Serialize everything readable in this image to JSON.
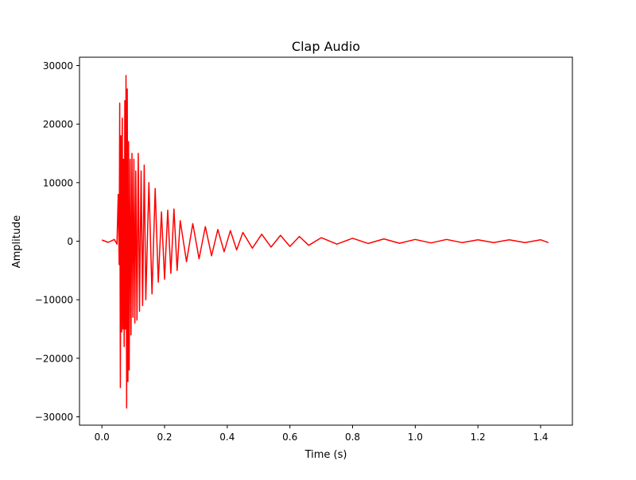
{
  "chart_data": {
    "type": "line",
    "title": "Clap Audio",
    "xlabel": "Time (s)",
    "ylabel": "Amplitude",
    "xlim": [
      -0.0715,
      1.5015
    ],
    "ylim": [
      -31427,
      31427
    ],
    "xticks": [
      {
        "value": 0.0,
        "label": "0.0"
      },
      {
        "value": 0.2,
        "label": "0.2"
      },
      {
        "value": 0.4,
        "label": "0.4"
      },
      {
        "value": 0.6,
        "label": "0.6"
      },
      {
        "value": 0.8,
        "label": "0.8"
      },
      {
        "value": 1.0,
        "label": "1.0"
      },
      {
        "value": 1.2,
        "label": "1.2"
      },
      {
        "value": 1.4,
        "label": "1.4"
      }
    ],
    "yticks": [
      {
        "value": -30000,
        "label": "−30000"
      },
      {
        "value": -20000,
        "label": "−20000"
      },
      {
        "value": -10000,
        "label": "−10000"
      },
      {
        "value": 0,
        "label": "0"
      },
      {
        "value": 10000,
        "label": "10000"
      },
      {
        "value": 20000,
        "label": "20000"
      },
      {
        "value": 30000,
        "label": "30000"
      }
    ],
    "grid": false,
    "legend": "none",
    "color": "#ff0000",
    "series": [
      {
        "x": [
          0.0,
          0.02,
          0.04,
          0.048,
          0.052,
          0.055,
          0.057,
          0.059,
          0.061,
          0.063,
          0.065,
          0.067,
          0.069,
          0.071,
          0.073,
          0.075,
          0.077,
          0.079,
          0.081,
          0.083,
          0.085,
          0.087,
          0.09,
          0.093,
          0.096,
          0.099,
          0.102,
          0.105,
          0.108,
          0.112,
          0.116,
          0.12,
          0.125,
          0.13,
          0.135,
          0.14,
          0.15,
          0.16,
          0.17,
          0.18,
          0.19,
          0.2,
          0.21,
          0.22,
          0.23,
          0.24,
          0.25,
          0.27,
          0.29,
          0.31,
          0.33,
          0.35,
          0.37,
          0.39,
          0.41,
          0.43,
          0.45,
          0.48,
          0.51,
          0.54,
          0.57,
          0.6,
          0.63,
          0.66,
          0.7,
          0.75,
          0.8,
          0.85,
          0.9,
          0.95,
          1.0,
          1.05,
          1.1,
          1.15,
          1.2,
          1.25,
          1.3,
          1.35,
          1.4,
          1.425
        ],
        "y": [
          200,
          -200,
          300,
          -500,
          8000,
          -4000,
          23600,
          -25000,
          18000,
          -15500,
          21000,
          -15000,
          14000,
          -18000,
          24000,
          -15000,
          28300,
          -28500,
          26000,
          -24000,
          17000,
          -22000,
          14000,
          -16000,
          15000,
          -13000,
          14000,
          -14000,
          12000,
          -13500,
          15000,
          -12000,
          12000,
          -11000,
          13000,
          -10000,
          10000,
          -9000,
          9000,
          -7000,
          5000,
          -6500,
          5300,
          -5500,
          5500,
          -5000,
          3500,
          -3500,
          3000,
          -3000,
          2500,
          -2500,
          2000,
          -1800,
          1800,
          -1500,
          1500,
          -1200,
          1200,
          -1000,
          1000,
          -900,
          800,
          -700,
          600,
          -500,
          500,
          -400,
          400,
          -350,
          300,
          -300,
          300,
          -250,
          250,
          -250,
          250,
          -250,
          250,
          -250
        ]
      }
    ]
  }
}
